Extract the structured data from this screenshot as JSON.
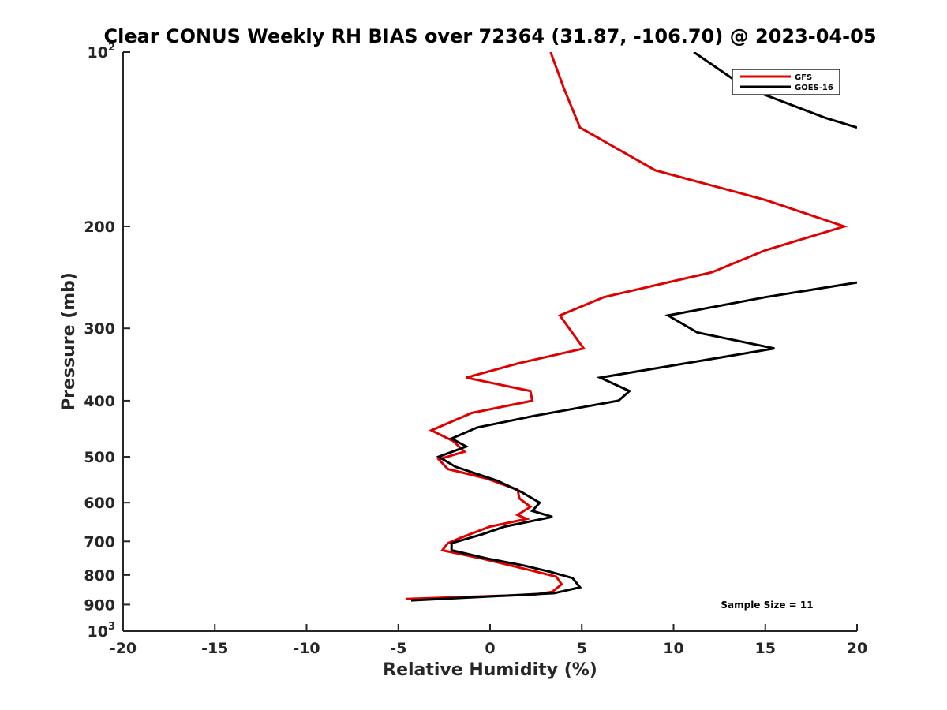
{
  "chart_data": {
    "type": "line",
    "title": "Clear CONUS Weekly RH BIAS over 72364 (31.87, -106.70) @ 2023-04-05",
    "xlabel": "Relative Humidity (%)",
    "ylabel": "Pressure (mb)",
    "xlim": [
      -20,
      20
    ],
    "ylim": [
      100,
      1000
    ],
    "yscale": "log",
    "y_reversed": true,
    "grid": false,
    "legend_position": "top-right",
    "x_ticks": [
      "-20",
      "-15",
      "-10",
      "-5",
      "0",
      "5",
      "10",
      "15",
      "20"
    ],
    "y_ticks": [
      {
        "value": 100,
        "base": "10",
        "exp": "2"
      },
      {
        "value": 200,
        "label": "200"
      },
      {
        "value": 300,
        "label": "300"
      },
      {
        "value": 400,
        "label": "400"
      },
      {
        "value": 500,
        "label": "500"
      },
      {
        "value": 600,
        "label": "600"
      },
      {
        "value": 700,
        "label": "700"
      },
      {
        "value": 800,
        "label": "800"
      },
      {
        "value": 900,
        "label": "900"
      },
      {
        "value": 1000,
        "base": "10",
        "exp": "3"
      }
    ],
    "series": [
      {
        "name": "GFS",
        "color": "#e00000",
        "points": [
          [
            3.3,
            100
          ],
          [
            4.0,
            115
          ],
          [
            4.9,
            135
          ],
          [
            9.0,
            160
          ],
          [
            15.0,
            180
          ],
          [
            19.3,
            200
          ],
          [
            15.0,
            220
          ],
          [
            12.1,
            240
          ],
          [
            6.2,
            265
          ],
          [
            3.8,
            285
          ],
          [
            5.1,
            325
          ],
          [
            1.5,
            345
          ],
          [
            -1.3,
            365
          ],
          [
            2.2,
            385
          ],
          [
            2.3,
            400
          ],
          [
            -1.0,
            420
          ],
          [
            -3.2,
            450
          ],
          [
            -2.0,
            470
          ],
          [
            -1.4,
            490
          ],
          [
            -2.8,
            505
          ],
          [
            -2.3,
            525
          ],
          [
            -0.2,
            545
          ],
          [
            1.5,
            570
          ],
          [
            1.6,
            590
          ],
          [
            2.2,
            610
          ],
          [
            1.5,
            630
          ],
          [
            2.0,
            640
          ],
          [
            0.0,
            660
          ],
          [
            -1.6,
            690
          ],
          [
            -2.3,
            705
          ],
          [
            -2.6,
            725
          ],
          [
            -0.4,
            750
          ],
          [
            2.2,
            785
          ],
          [
            3.6,
            805
          ],
          [
            3.9,
            830
          ],
          [
            3.4,
            855
          ],
          [
            2.4,
            865
          ],
          [
            -4.6,
            880
          ]
        ]
      },
      {
        "name": "GOES-16",
        "color": "#000000",
        "points": [
          [
            11.1,
            100
          ],
          [
            13.9,
            115
          ],
          [
            18.3,
            130
          ],
          [
            20.0,
            135
          ],
          null,
          [
            20.0,
            250
          ],
          [
            15.0,
            265
          ],
          [
            9.7,
            285
          ],
          [
            11.3,
            305
          ],
          [
            15.5,
            325
          ],
          [
            6.0,
            365
          ],
          [
            7.6,
            385
          ],
          [
            7.0,
            400
          ],
          [
            2.4,
            425
          ],
          [
            -0.7,
            445
          ],
          [
            -2.1,
            465
          ],
          [
            -1.3,
            480
          ],
          [
            -2.8,
            500
          ],
          [
            -1.9,
            520
          ],
          [
            0.4,
            550
          ],
          [
            1.7,
            575
          ],
          [
            2.7,
            600
          ],
          [
            2.3,
            620
          ],
          [
            3.4,
            635
          ],
          [
            0.8,
            660
          ],
          [
            -0.4,
            680
          ],
          [
            -2.1,
            705
          ],
          [
            -2.1,
            725
          ],
          [
            -0.1,
            750
          ],
          [
            1.8,
            770
          ],
          [
            3.3,
            790
          ],
          [
            4.5,
            810
          ],
          [
            4.9,
            840
          ],
          [
            3.5,
            860
          ],
          [
            -4.3,
            885
          ]
        ]
      }
    ],
    "annotation": "Sample Size = 11"
  }
}
